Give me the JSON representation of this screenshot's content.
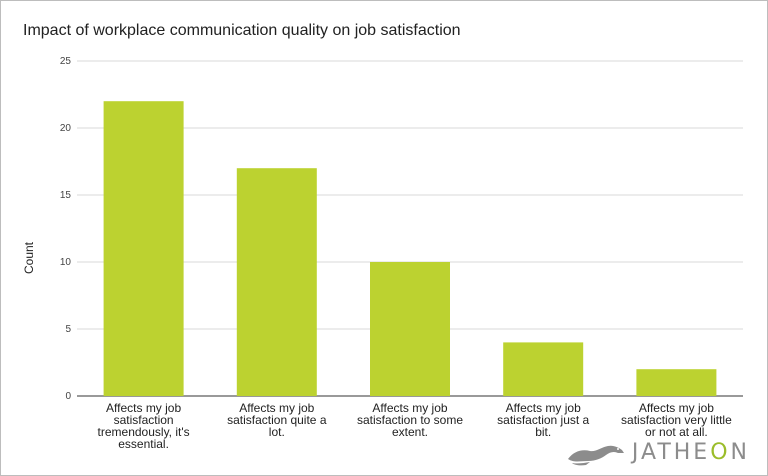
{
  "chart_data": {
    "type": "bar",
    "title": "Impact of workplace communication quality on job satisfaction",
    "xlabel": "",
    "ylabel": "Count",
    "ylim": [
      0,
      25
    ],
    "yticks": [
      0,
      5,
      10,
      15,
      20,
      25
    ],
    "grid": true,
    "legend": "none",
    "bar_color": "#bcd230",
    "categories": [
      [
        "Affects my job",
        "satisfaction",
        "tremendously, it's",
        "essential."
      ],
      [
        "Affects my job",
        "satisfaction quite a",
        "lot."
      ],
      [
        "Affects my job",
        "satisfaction to some",
        "extent."
      ],
      [
        "Affects my job",
        "satisfaction just a",
        "bit."
      ],
      [
        "Affects my job",
        "satisfaction very little",
        "or not at all."
      ]
    ],
    "values": [
      22,
      17,
      10,
      4,
      2
    ]
  },
  "watermark": {
    "brand_prefix": "JATHE",
    "brand_o": "O",
    "brand_suffix": "N",
    "icon": "ferret-icon"
  }
}
